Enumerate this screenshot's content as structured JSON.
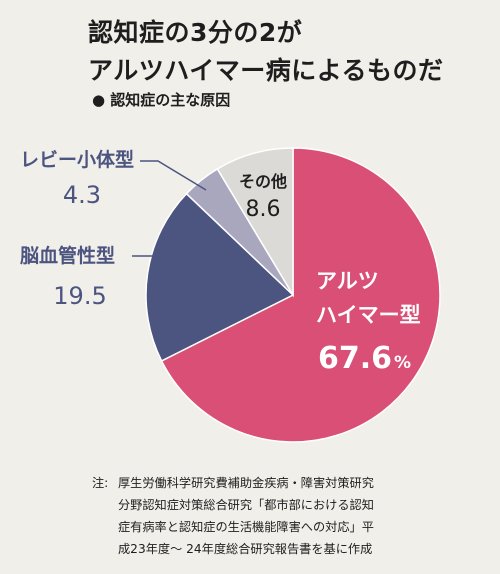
{
  "header": {
    "title_line1": "認知症の3分の2が",
    "title_line2": "アルツハイマー病によるものだ",
    "subtitle": "● 認知症の主な原因"
  },
  "chart_data": {
    "type": "pie",
    "title": "",
    "start_angle_deg": 0,
    "direction": "clockwise",
    "slices": [
      {
        "label_lines": [
          "アルツ",
          "ハイマー型"
        ],
        "value": 67.6,
        "value_text": "67.6",
        "unit": "%",
        "color": "#d94f75"
      },
      {
        "label_lines": [
          "脳血管性型"
        ],
        "value": 19.5,
        "value_text": "19.5",
        "unit": "",
        "color": "#4c5480"
      },
      {
        "label_lines": [
          "レビー小体型"
        ],
        "value": 4.3,
        "value_text": "4.3",
        "unit": "",
        "color": "#a9a7be"
      },
      {
        "label_lines": [
          "その他"
        ],
        "value": 8.6,
        "value_text": "8.6",
        "unit": "",
        "color": "#dcdad7"
      }
    ]
  },
  "note": {
    "prefix": "注:",
    "text": "厚生労働科学研究費補助金疾病・障害対策研究\n分野認知症対策総合研究「都市部における認知\n症有病率と認知症の生活機能障害への対応」平\n成23年度〜 24年度総合研究報告書を基に作成"
  }
}
